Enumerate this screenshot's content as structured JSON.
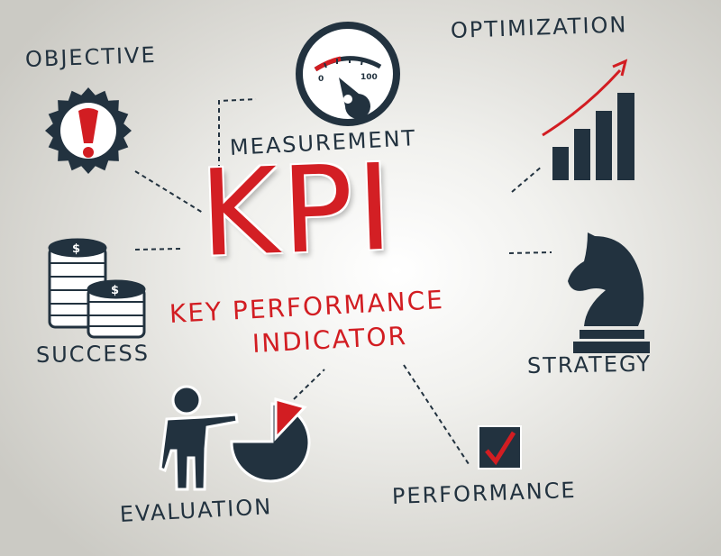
{
  "title": "KPI",
  "subtitle_line1": "KEY PERFORMANCE",
  "subtitle_line2": "INDICATOR",
  "labels": {
    "objective": "OBJECTIVE",
    "measurement": "MEASUREMENT",
    "optimization": "OPTIMIZATION",
    "success": "SUCCESS",
    "strategy": "STRATEGY",
    "evaluation": "EVALUATION",
    "performance": "PERFORMANCE"
  },
  "gauge": {
    "min_label": "0",
    "max_label": "100"
  },
  "coins": {
    "symbol": "$"
  },
  "icons": [
    "exclamation-badge-icon",
    "gauge-icon",
    "bar-chart-arrow-icon",
    "coins-icon",
    "chess-knight-icon",
    "presenter-pie-chart-icon",
    "checkbox-icon"
  ],
  "colors": {
    "accent": "#d21d22",
    "dark": "#22323f"
  }
}
